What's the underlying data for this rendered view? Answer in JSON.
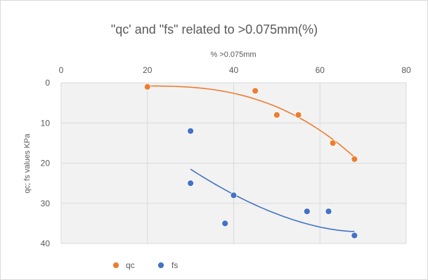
{
  "chart_data": {
    "type": "scatter",
    "title": "\"qc' and \"fs\" related to >0.075mm(%)",
    "xlabel": "% >0.075mm",
    "ylabel": "qc; fs values KPa",
    "xlim": [
      0,
      80
    ],
    "ylim": [
      0,
      40
    ],
    "y_reversed": true,
    "x_axis_position": "top",
    "x_ticks": [
      "0",
      "20",
      "40",
      "60",
      "80"
    ],
    "y_ticks": [
      "0",
      "10",
      "20",
      "30",
      "40"
    ],
    "grid": "horizontal",
    "legend_position": "bottom-left",
    "series": [
      {
        "name": "qc",
        "color": "#ED7D31",
        "points": [
          {
            "x": 20,
            "y": 1
          },
          {
            "x": 45,
            "y": 2
          },
          {
            "x": 50,
            "y": 8
          },
          {
            "x": 55,
            "y": 8
          },
          {
            "x": 63,
            "y": 15
          },
          {
            "x": 68,
            "y": 19
          }
        ],
        "trendline": {
          "x_start": 20,
          "x_end": 68,
          "y_start": 0.8,
          "y_end": 18.5
        }
      },
      {
        "name": "fs",
        "color": "#4472C4",
        "points": [
          {
            "x": 30,
            "y": 12
          },
          {
            "x": 30,
            "y": 25
          },
          {
            "x": 40,
            "y": 28
          },
          {
            "x": 38,
            "y": 35
          },
          {
            "x": 57,
            "y": 32
          },
          {
            "x": 62,
            "y": 32
          },
          {
            "x": 68,
            "y": 38
          }
        ],
        "trendline": {
          "x_start": 30,
          "x_end": 68,
          "y_start": 21.5,
          "y_end": 37
        }
      }
    ]
  }
}
